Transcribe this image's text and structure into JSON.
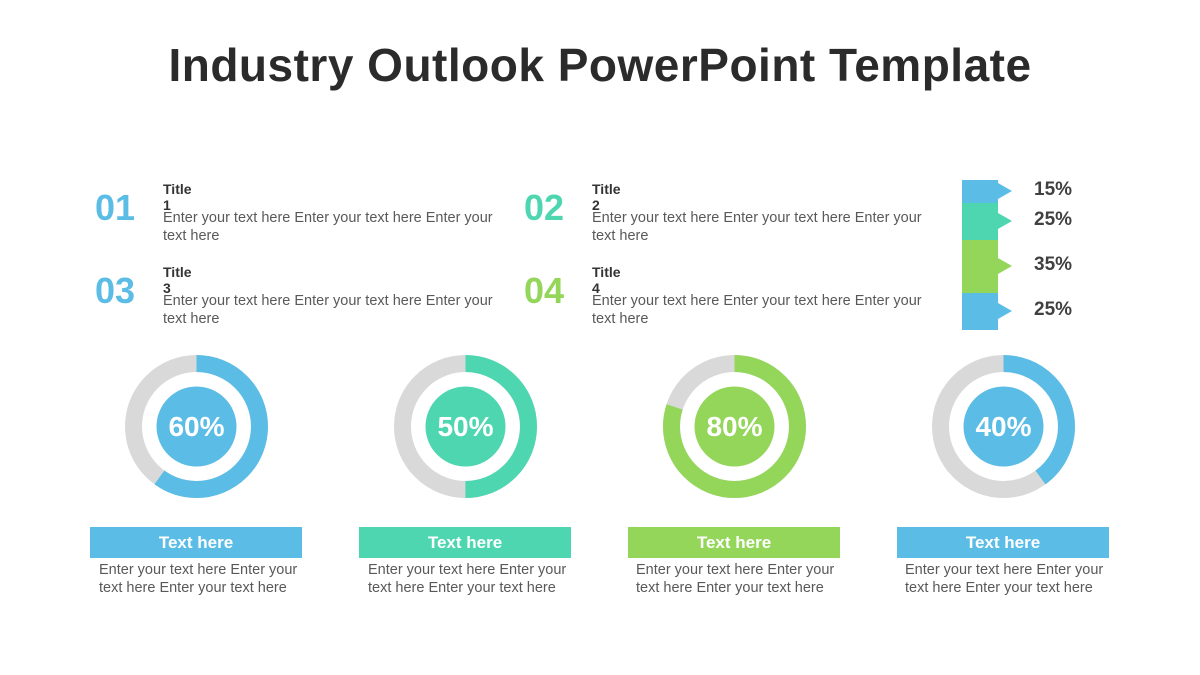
{
  "slide": {
    "title": "Industry Outlook PowerPoint Template"
  },
  "colors": {
    "blue": "#5bbde6",
    "teal": "#4dd6b0",
    "green": "#94d65a",
    "gray": "#d9d9d9"
  },
  "items": [
    {
      "num": "01",
      "title": "Title 1",
      "text": "Enter your text here Enter your text here Enter your text here",
      "color": "#5bbde6"
    },
    {
      "num": "02",
      "title": "Title 2",
      "text": "Enter your text here Enter your text here Enter your text here",
      "color": "#4dd6b0"
    },
    {
      "num": "03",
      "title": "Title 3",
      "text": "Enter your text here Enter your text here Enter your text here",
      "color": "#5bbde6"
    },
    {
      "num": "04",
      "title": "Title 4",
      "text": "Enter your text here Enter your text here Enter your text here",
      "color": "#94d65a"
    }
  ],
  "stack_bar": [
    {
      "label": "15%",
      "value": 15,
      "color": "#5bbde6"
    },
    {
      "label": "25%",
      "value": 25,
      "color": "#4dd6b0"
    },
    {
      "label": "35%",
      "value": 35,
      "color": "#94d65a"
    },
    {
      "label": "25%",
      "value": 25,
      "color": "#5bbde6"
    }
  ],
  "donuts": [
    {
      "label": "60%",
      "value": 60,
      "color": "#5bbde6",
      "heading": "Text here",
      "text": "Enter your text here Enter your text here Enter your text here"
    },
    {
      "label": "50%",
      "value": 50,
      "color": "#4dd6b0",
      "heading": "Text here",
      "text": "Enter your text here Enter your text here Enter your text here"
    },
    {
      "label": "80%",
      "value": 80,
      "color": "#94d65a",
      "heading": "Text here",
      "text": "Enter your text here Enter your text here Enter your text here"
    },
    {
      "label": "40%",
      "value": 40,
      "color": "#5bbde6",
      "heading": "Text here",
      "text": "Enter your text here Enter your text here Enter your text here"
    }
  ]
}
